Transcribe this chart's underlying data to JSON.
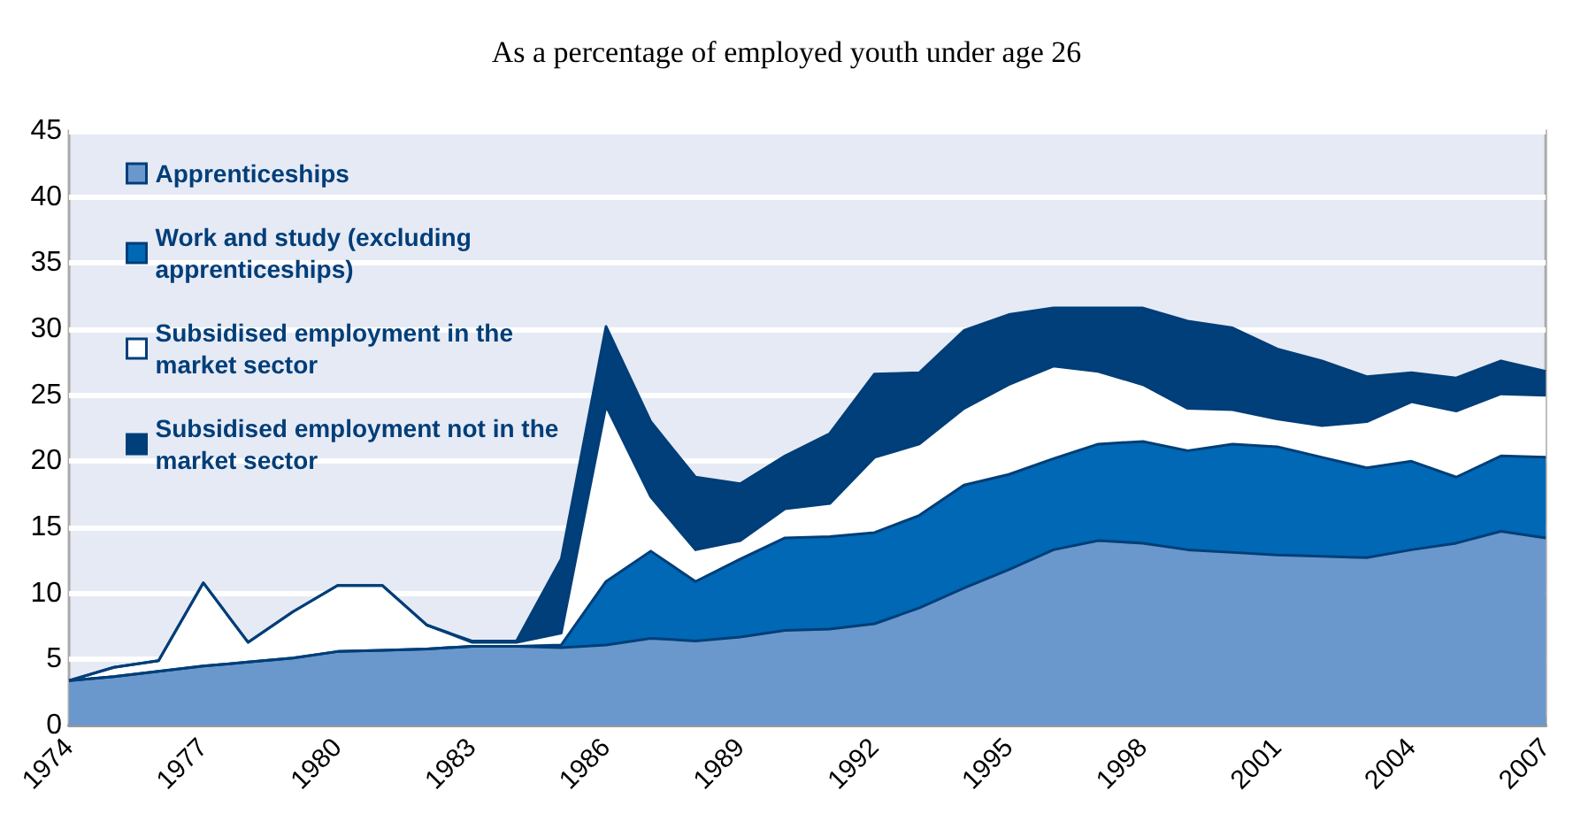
{
  "chart_data": {
    "type": "area",
    "stacked": true,
    "title": "As a percentage of employed youth under age 26",
    "x": [
      1974,
      1975,
      1976,
      1977,
      1978,
      1979,
      1980,
      1981,
      1982,
      1983,
      1984,
      1985,
      1986,
      1987,
      1988,
      1989,
      1990,
      1991,
      1992,
      1993,
      1994,
      1995,
      1996,
      1997,
      1998,
      1999,
      2000,
      2001,
      2002,
      2003,
      2004,
      2005,
      2006,
      2007
    ],
    "xlim": [
      1974,
      2007
    ],
    "xticks": [
      1974,
      1977,
      1980,
      1983,
      1986,
      1989,
      1992,
      1995,
      1998,
      2001,
      2004,
      2007
    ],
    "ylim": [
      0,
      45
    ],
    "yticks": [
      0,
      5,
      10,
      15,
      20,
      25,
      30,
      35,
      40,
      45
    ],
    "grid": "y",
    "legend": "top left",
    "marker": "none",
    "series": [
      {
        "name": "Apprenticeships",
        "color": "#6a98cc",
        "values": [
          3.4,
          3.7,
          4.1,
          4.5,
          4.8,
          5.1,
          5.6,
          5.7,
          5.8,
          6.0,
          6.0,
          5.9,
          6.1,
          6.6,
          6.4,
          6.7,
          7.2,
          7.3,
          7.7,
          8.9,
          10.4,
          11.8,
          13.3,
          14.0,
          13.8,
          13.3,
          13.1,
          12.9,
          12.8,
          12.7,
          13.3,
          13.8,
          14.7,
          14.2
        ]
      },
      {
        "name": "Work and study (excluding apprenticeships)",
        "color": "#0068b4",
        "values": [
          0,
          0,
          0,
          0,
          0,
          0,
          0,
          0,
          0,
          0,
          0,
          0.2,
          4.8,
          6.6,
          4.5,
          5.9,
          7.0,
          7.0,
          6.9,
          7.0,
          7.8,
          7.2,
          6.9,
          7.3,
          7.7,
          7.5,
          8.2,
          8.2,
          7.5,
          6.8,
          6.7,
          5.0,
          5.7,
          6.1
        ]
      },
      {
        "name": "Subsidised employment in the market sector",
        "color": "#ffffff",
        "values": [
          0,
          0.7,
          0.8,
          6.3,
          1.5,
          3.5,
          5.0,
          4.9,
          1.8,
          0.3,
          0.3,
          0.9,
          13.3,
          4.1,
          2.4,
          1.4,
          2.2,
          2.5,
          5.7,
          5.4,
          5.8,
          6.8,
          7.0,
          5.5,
          4.3,
          3.2,
          2.6,
          2.1,
          2.4,
          3.5,
          4.5,
          5.0,
          4.7,
          4.7
        ]
      },
      {
        "name": "Subsidised employment not in the market sector",
        "color": "#003f7a",
        "values": [
          0,
          0,
          0,
          0,
          0,
          0,
          0,
          0,
          0,
          0.1,
          0.1,
          5.6,
          6.0,
          5.7,
          5.5,
          4.3,
          4.0,
          5.3,
          6.3,
          5.4,
          5.9,
          5.3,
          4.4,
          4.8,
          5.8,
          6.6,
          6.2,
          5.3,
          4.9,
          3.4,
          2.2,
          2.5,
          2.5,
          1.8
        ]
      }
    ]
  }
}
